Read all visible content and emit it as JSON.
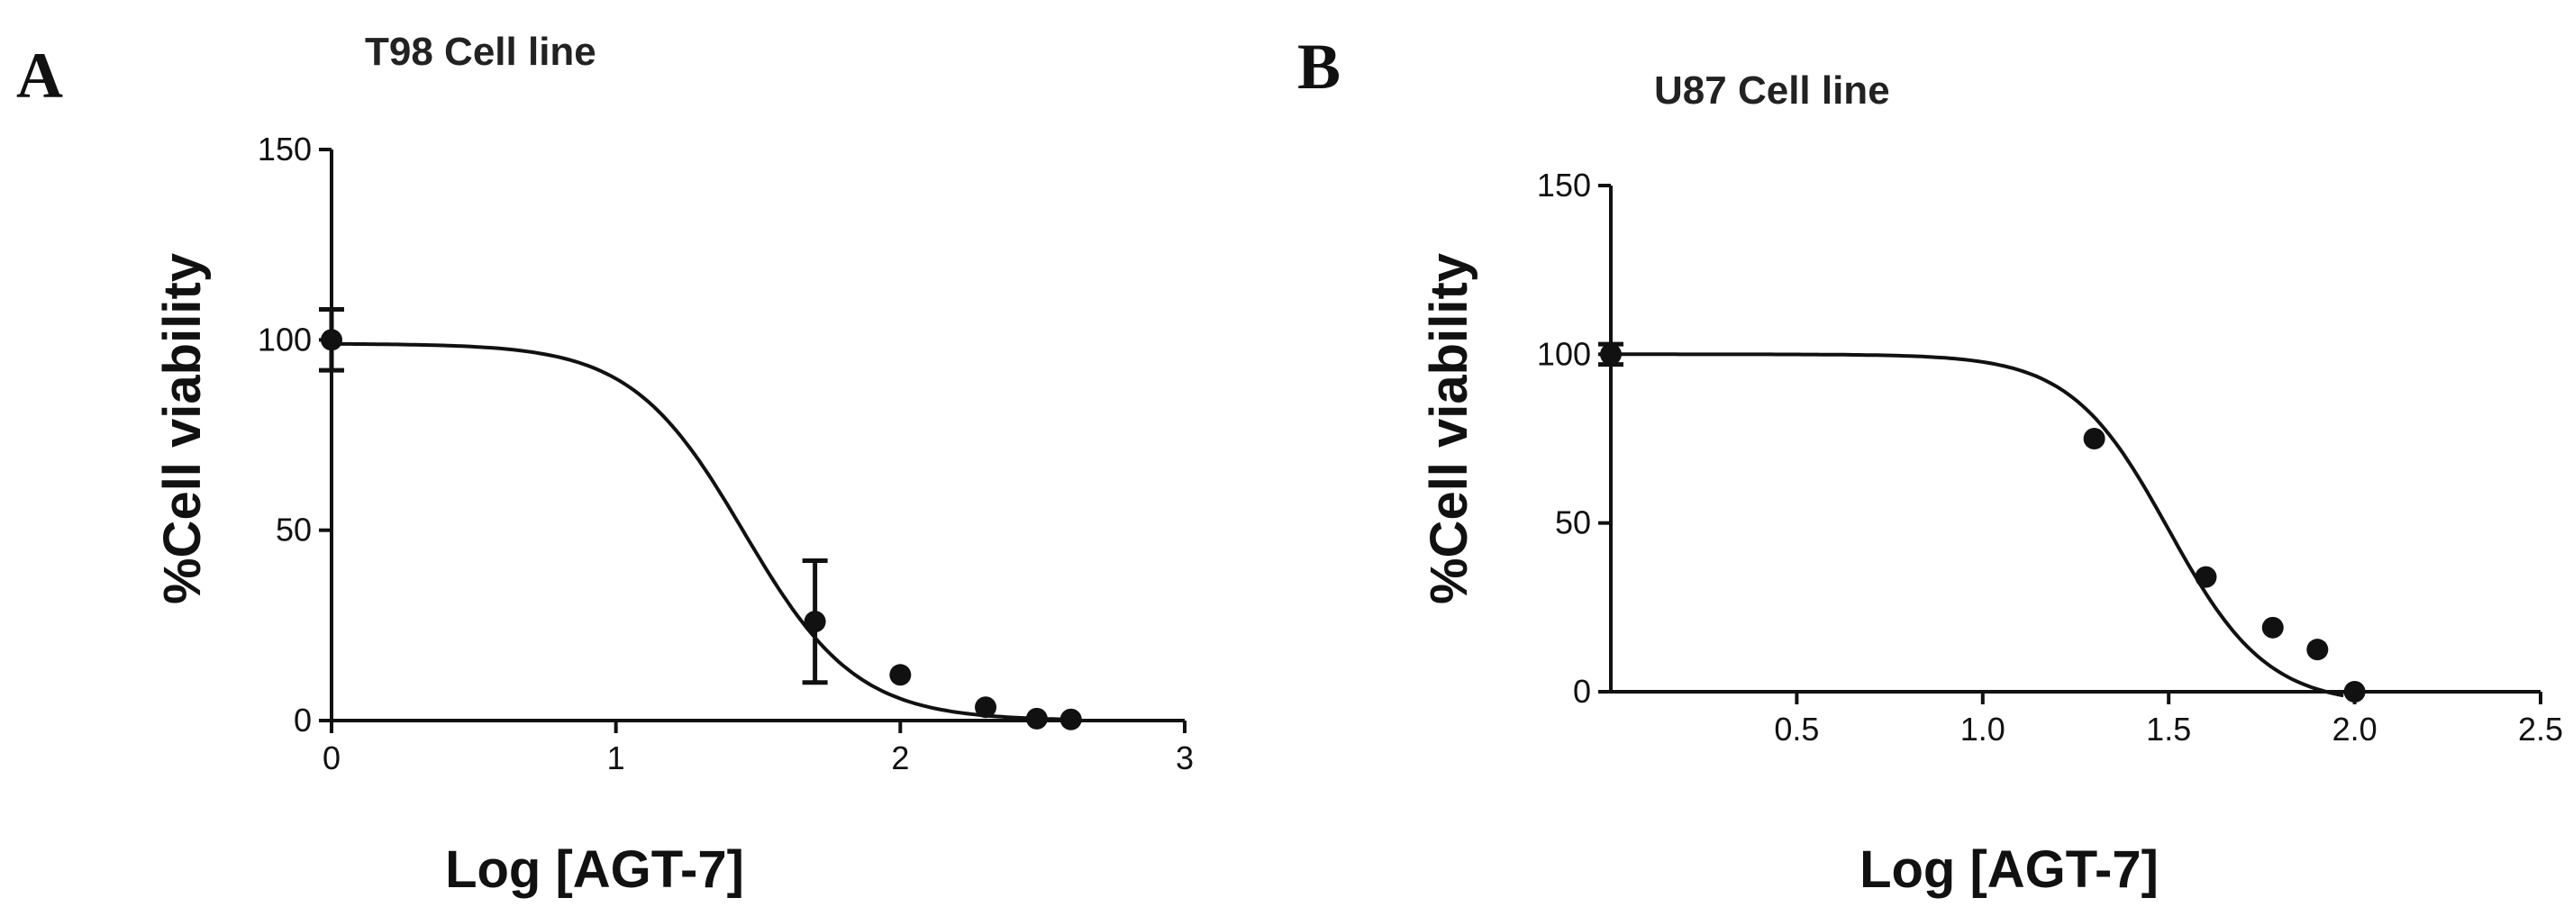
{
  "chart_data": [
    {
      "panel": "A",
      "type": "scatter",
      "title": "T98 Cell line",
      "xlabel": "Log [AGT-7]",
      "ylabel": "%Cell viability",
      "xlim": [
        0,
        3
      ],
      "ylim": [
        0,
        150
      ],
      "xticks": [
        0,
        1,
        2,
        3
      ],
      "xtick_labels": [
        "0",
        "1",
        "2",
        "3"
      ],
      "yticks": [
        0,
        50,
        100,
        150
      ],
      "ytick_labels": [
        "0",
        "50",
        "100",
        "150"
      ],
      "grid": false,
      "points": [
        {
          "x": 0,
          "y": 100,
          "err": 8
        },
        {
          "x": 1.7,
          "y": 26,
          "err": 16
        },
        {
          "x": 2.0,
          "y": 12
        },
        {
          "x": 2.3,
          "y": 3.5
        },
        {
          "x": 2.48,
          "y": 0.5
        },
        {
          "x": 2.6,
          "y": 0.3
        }
      ],
      "fit": {
        "model": "sigmoid",
        "top": 99,
        "bottom": 0,
        "logIC50": 1.45,
        "hill": 2.2,
        "x_range": [
          0,
          2.62
        ]
      }
    },
    {
      "panel": "B",
      "type": "scatter",
      "title": "U87 Cell line",
      "xlabel": "Log [AGT-7]",
      "ylabel": "%Cell viability",
      "xlim": [
        0,
        2.5
      ],
      "ylim": [
        0,
        150
      ],
      "xticks": [
        0.5,
        1.0,
        1.5,
        2.0,
        2.5
      ],
      "xtick_labels": [
        "0.5",
        "1.0",
        "1.5",
        "2.0",
        "2.5"
      ],
      "yticks": [
        0,
        50,
        100,
        150
      ],
      "ytick_labels": [
        "0",
        "50",
        "100",
        "150"
      ],
      "grid": false,
      "points": [
        {
          "x": 0,
          "y": 100,
          "err": 3
        },
        {
          "x": 1.3,
          "y": 75
        },
        {
          "x": 1.6,
          "y": 34
        },
        {
          "x": 1.78,
          "y": 19
        },
        {
          "x": 1.9,
          "y": 12.5
        },
        {
          "x": 2.0,
          "y": 0
        }
      ],
      "fit": {
        "model": "sigmoid",
        "top": 100,
        "bottom": -4,
        "logIC50": 1.5,
        "hill": 3.3,
        "x_range": [
          0,
          1.97
        ]
      }
    }
  ]
}
